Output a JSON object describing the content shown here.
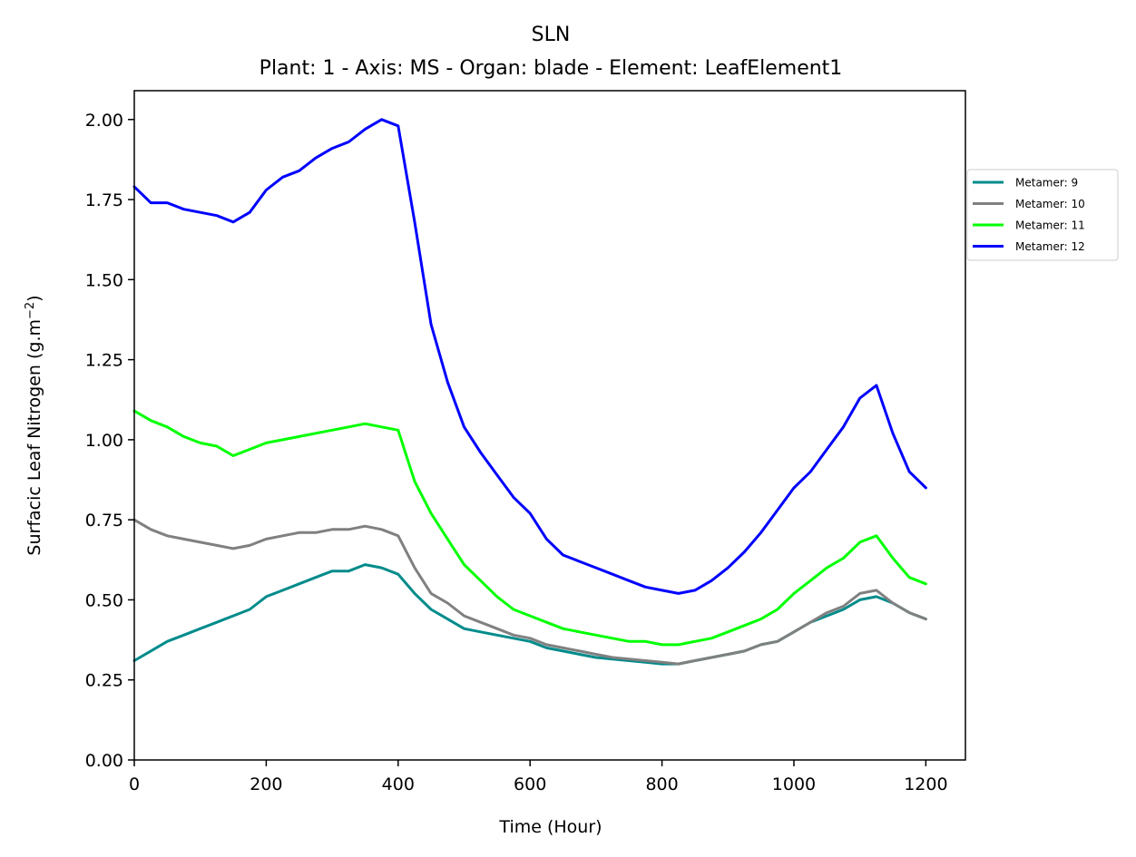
{
  "chart_data": {
    "type": "line",
    "title": "SLN",
    "subtitle": "Plant: 1 - Axis: MS - Organ: blade - Element: LeafElement1",
    "xlabel": "Time (Hour)",
    "ylabel": "Surfacic Leaf Nitrogen (g.m",
    "ylabel_sup": "−2",
    "ylabel_end": ")",
    "xlim": [
      0,
      1260
    ],
    "ylim": [
      0,
      2.09
    ],
    "xticks": [
      0,
      200,
      400,
      600,
      800,
      1000,
      1200
    ],
    "xtick_labels": [
      "0",
      "200",
      "400",
      "600",
      "800",
      "1000",
      "1200"
    ],
    "yticks": [
      0,
      0.25,
      0.5,
      0.75,
      1.0,
      1.25,
      1.5,
      1.75,
      2.0
    ],
    "ytick_labels": [
      "0.00",
      "0.25",
      "0.50",
      "0.75",
      "1.00",
      "1.25",
      "1.50",
      "1.75",
      "2.00"
    ],
    "grid": false,
    "legend_position": "outside-right-top",
    "x": [
      0,
      25,
      50,
      75,
      100,
      125,
      150,
      175,
      200,
      225,
      250,
      275,
      300,
      325,
      350,
      375,
      400,
      425,
      450,
      475,
      500,
      525,
      550,
      575,
      600,
      625,
      650,
      675,
      700,
      725,
      750,
      775,
      800,
      825,
      850,
      875,
      900,
      925,
      950,
      975,
      1000,
      1025,
      1050,
      1075,
      1100,
      1125,
      1150,
      1175,
      1200
    ],
    "series": [
      {
        "name": "Metamer: 9",
        "color": "#008b8b",
        "values": [
          0.31,
          0.34,
          0.37,
          0.39,
          0.41,
          0.43,
          0.45,
          0.47,
          0.51,
          0.53,
          0.55,
          0.57,
          0.59,
          0.59,
          0.61,
          0.6,
          0.58,
          0.52,
          0.47,
          0.44,
          0.41,
          0.4,
          0.39,
          0.38,
          0.37,
          0.35,
          0.34,
          0.33,
          0.32,
          0.315,
          0.31,
          0.305,
          0.3,
          0.3,
          0.31,
          0.32,
          0.33,
          0.34,
          0.36,
          0.37,
          0.4,
          0.43,
          0.45,
          0.47,
          0.5,
          0.51,
          0.49,
          0.46,
          0.44
        ]
      },
      {
        "name": "Metamer: 10",
        "color": "#808080",
        "values": [
          0.75,
          0.72,
          0.7,
          0.69,
          0.68,
          0.67,
          0.66,
          0.67,
          0.69,
          0.7,
          0.71,
          0.71,
          0.72,
          0.72,
          0.73,
          0.72,
          0.7,
          0.6,
          0.52,
          0.49,
          0.45,
          0.43,
          0.41,
          0.39,
          0.38,
          0.36,
          0.35,
          0.34,
          0.33,
          0.32,
          0.315,
          0.31,
          0.305,
          0.3,
          0.31,
          0.32,
          0.33,
          0.34,
          0.36,
          0.37,
          0.4,
          0.43,
          0.46,
          0.48,
          0.52,
          0.53,
          0.49,
          0.46,
          0.44
        ]
      },
      {
        "name": "Metamer: 11",
        "color": "#00ff00",
        "values": [
          1.09,
          1.06,
          1.04,
          1.01,
          0.99,
          0.98,
          0.95,
          0.97,
          0.99,
          1.0,
          1.01,
          1.02,
          1.03,
          1.04,
          1.05,
          1.04,
          1.03,
          0.87,
          0.77,
          0.69,
          0.61,
          0.56,
          0.51,
          0.47,
          0.45,
          0.43,
          0.41,
          0.4,
          0.39,
          0.38,
          0.37,
          0.37,
          0.36,
          0.36,
          0.37,
          0.38,
          0.4,
          0.42,
          0.44,
          0.47,
          0.52,
          0.56,
          0.6,
          0.63,
          0.68,
          0.7,
          0.63,
          0.57,
          0.55
        ]
      },
      {
        "name": "Metamer: 12",
        "color": "#0000ff",
        "values": [
          1.79,
          1.74,
          1.74,
          1.72,
          1.71,
          1.7,
          1.68,
          1.71,
          1.78,
          1.82,
          1.84,
          1.88,
          1.91,
          1.93,
          1.97,
          2.0,
          1.98,
          1.68,
          1.36,
          1.18,
          1.04,
          0.96,
          0.89,
          0.82,
          0.77,
          0.69,
          0.64,
          0.62,
          0.6,
          0.58,
          0.56,
          0.54,
          0.53,
          0.52,
          0.53,
          0.56,
          0.6,
          0.65,
          0.71,
          0.78,
          0.85,
          0.9,
          0.97,
          1.04,
          1.13,
          1.17,
          1.02,
          0.9,
          0.85
        ]
      }
    ]
  }
}
